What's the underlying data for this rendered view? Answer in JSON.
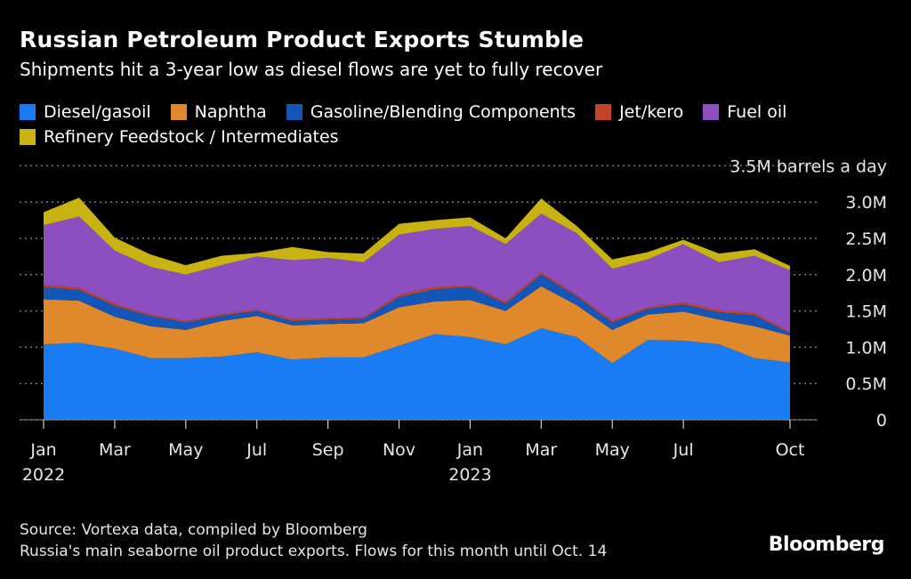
{
  "header": {
    "title": "Russian Petroleum Product Exports Stumble",
    "subtitle": "Shipments hit a 3-year low as diesel flows are yet to fully recover"
  },
  "legend": {
    "row1": [
      {
        "label": "Diesel/gasoil",
        "color": "#1a7cf2"
      },
      {
        "label": "Naphtha",
        "color": "#e0892c"
      },
      {
        "label": "Gasoline/Blending Components",
        "color": "#1456b8"
      },
      {
        "label": "Jet/kero",
        "color": "#c24327"
      },
      {
        "label": "Fuel oil",
        "color": "#8d4fbf"
      }
    ],
    "row2": [
      {
        "label": "Refinery Feedstock / Intermediates",
        "color": "#c9b313"
      }
    ]
  },
  "footer": {
    "source": "Source: Vortexa data, compiled by Bloomberg",
    "note": "Russia's main seaborne oil product exports. Flows for this month until Oct. 14",
    "brand": "Bloomberg"
  },
  "chart_data": {
    "type": "area",
    "stacked": true,
    "title": "Russian Petroleum Product Exports Stumble",
    "ylabel": "3.5M barrels a day",
    "ylim": [
      0,
      3.5
    ],
    "yticks": [
      {
        "value": 0,
        "label": "0"
      },
      {
        "value": 0.5,
        "label": "0.5M"
      },
      {
        "value": 1.0,
        "label": "1.0M"
      },
      {
        "value": 1.5,
        "label": "1.5M"
      },
      {
        "value": 2.0,
        "label": "2.0M"
      },
      {
        "value": 2.5,
        "label": "2.5M"
      },
      {
        "value": 3.0,
        "label": "3.0M"
      },
      {
        "value": 3.5,
        "label": "3.5M barrels a day"
      }
    ],
    "x": [
      "2022-01",
      "2022-02",
      "2022-03",
      "2022-04",
      "2022-05",
      "2022-06",
      "2022-07",
      "2022-08",
      "2022-09",
      "2022-10",
      "2022-11",
      "2022-12",
      "2023-01",
      "2023-02",
      "2023-03",
      "2023-04",
      "2023-05",
      "2023-06",
      "2023-07",
      "2023-08",
      "2023-09",
      "2023-10"
    ],
    "xticks": [
      {
        "index": 0,
        "label": "Jan",
        "sublabel": "2022"
      },
      {
        "index": 2,
        "label": "Mar",
        "sublabel": ""
      },
      {
        "index": 4,
        "label": "May",
        "sublabel": ""
      },
      {
        "index": 6,
        "label": "Jul",
        "sublabel": ""
      },
      {
        "index": 8,
        "label": "Sep",
        "sublabel": ""
      },
      {
        "index": 10,
        "label": "Nov",
        "sublabel": ""
      },
      {
        "index": 12,
        "label": "Jan",
        "sublabel": "2023"
      },
      {
        "index": 14,
        "label": "Mar",
        "sublabel": ""
      },
      {
        "index": 16,
        "label": "May",
        "sublabel": ""
      },
      {
        "index": 18,
        "label": "Jul",
        "sublabel": ""
      },
      {
        "index": 21,
        "label": "Oct",
        "sublabel": ""
      }
    ],
    "series": [
      {
        "name": "Diesel/gasoil",
        "color": "#1a7cf2",
        "values": [
          1.04,
          1.06,
          0.98,
          0.85,
          0.85,
          0.87,
          0.93,
          0.83,
          0.86,
          0.86,
          1.02,
          1.18,
          1.14,
          1.04,
          1.26,
          1.14,
          0.78,
          1.1,
          1.09,
          1.04,
          0.85,
          0.79
        ]
      },
      {
        "name": "Naphtha",
        "color": "#e0892c",
        "values": [
          0.62,
          0.58,
          0.44,
          0.44,
          0.39,
          0.49,
          0.5,
          0.47,
          0.46,
          0.47,
          0.53,
          0.45,
          0.51,
          0.46,
          0.58,
          0.44,
          0.46,
          0.35,
          0.4,
          0.34,
          0.44,
          0.37
        ]
      },
      {
        "name": "Gasoline/Blending Components",
        "color": "#1456b8",
        "values": [
          0.17,
          0.15,
          0.15,
          0.14,
          0.1,
          0.07,
          0.07,
          0.06,
          0.06,
          0.06,
          0.14,
          0.17,
          0.18,
          0.1,
          0.16,
          0.12,
          0.1,
          0.08,
          0.1,
          0.1,
          0.15,
          0.03
        ]
      },
      {
        "name": "Jet/kero",
        "color": "#c24327",
        "values": [
          0.03,
          0.03,
          0.03,
          0.02,
          0.02,
          0.02,
          0.02,
          0.03,
          0.02,
          0.02,
          0.03,
          0.03,
          0.02,
          0.03,
          0.03,
          0.02,
          0.03,
          0.02,
          0.03,
          0.03,
          0.03,
          0.02
        ]
      },
      {
        "name": "Fuel oil",
        "color": "#8d4fbf",
        "values": [
          0.82,
          0.98,
          0.73,
          0.66,
          0.64,
          0.68,
          0.73,
          0.81,
          0.83,
          0.76,
          0.83,
          0.8,
          0.82,
          0.79,
          0.81,
          0.85,
          0.71,
          0.66,
          0.8,
          0.66,
          0.79,
          0.85
        ]
      },
      {
        "name": "Refinery Feedstock / Intermediates",
        "color": "#c9b313",
        "values": [
          0.18,
          0.26,
          0.18,
          0.17,
          0.13,
          0.13,
          0.05,
          0.18,
          0.08,
          0.12,
          0.15,
          0.12,
          0.12,
          0.08,
          0.21,
          0.1,
          0.13,
          0.1,
          0.06,
          0.12,
          0.09,
          0.06
        ]
      }
    ],
    "grid": true,
    "legend_position": "top"
  }
}
